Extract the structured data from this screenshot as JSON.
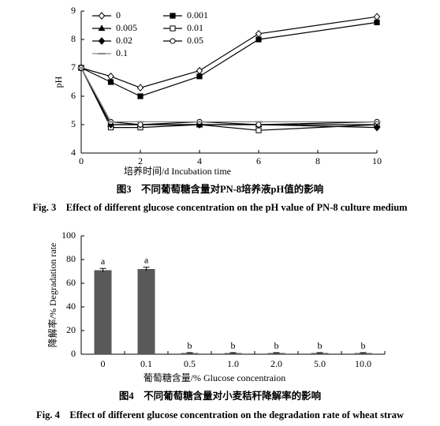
{
  "chart_data": [
    {
      "type": "line",
      "x_label": "培养时间/d Incubation time",
      "y_label": "pH",
      "caption_cn": "图3　不同葡萄糖含量对PN-8培养液pH值的影响",
      "caption_en": "Fig. 3　Effect of different glucose concentration on the pH value of PN-8 culture medium",
      "x": [
        0,
        1,
        2,
        4,
        6,
        10
      ],
      "xlim": [
        0,
        10
      ],
      "xticks": [
        0,
        2,
        4,
        6,
        8,
        10
      ],
      "ylim": [
        4,
        9
      ],
      "yticks": [
        4,
        5,
        6,
        7,
        8,
        9
      ],
      "legend": "upper left",
      "series": [
        {
          "name": "0",
          "color": "#000000",
          "marker": "diamond-open",
          "values": [
            7,
            6.7,
            6.3,
            6.9,
            8.2,
            8.8
          ]
        },
        {
          "name": "0.001",
          "color": "#000000",
          "marker": "square-filled",
          "values": [
            7,
            6.5,
            6.0,
            6.7,
            8.0,
            8.6
          ]
        },
        {
          "name": "0.005",
          "color": "#000000",
          "marker": "triangle-filled",
          "values": [
            7,
            5.0,
            5.0,
            5.0,
            5.0,
            5.0
          ]
        },
        {
          "name": "0.01",
          "color": "#000000",
          "marker": "square-open",
          "values": [
            7,
            4.9,
            4.9,
            5.0,
            4.8,
            5.0
          ]
        },
        {
          "name": "0.02",
          "color": "#000000",
          "marker": "diamond-filled",
          "values": [
            7,
            5.0,
            5.0,
            5.0,
            5.0,
            4.9
          ]
        },
        {
          "name": "0.05",
          "color": "#000000",
          "marker": "circle-open",
          "values": [
            7,
            5.1,
            5.0,
            5.1,
            5.0,
            5.1
          ]
        },
        {
          "name": "0.1",
          "color": "#888888",
          "marker": "dash",
          "values": [
            7,
            5.1,
            5.1,
            5.1,
            5.1,
            5.1
          ]
        }
      ]
    },
    {
      "type": "bar",
      "x_label": "葡萄糖含量/% Glucose concentraion",
      "y_label": "降解率/% Degradation rate",
      "caption_cn": "图4　不同葡萄糖含量对小麦秸秆降解率的影响",
      "caption_en": "Fig. 4　Effect of different glucose concentration on the degradation rate of wheat straw",
      "categories": [
        "0",
        "0.1",
        "0.5",
        "1.0",
        "2.0",
        "5.0",
        "10.0"
      ],
      "values": [
        71,
        72,
        1,
        1,
        1,
        1,
        1
      ],
      "errors": [
        1.5,
        1.5,
        0.3,
        0.3,
        0.3,
        0.3,
        0.3
      ],
      "significance_labels": [
        "a",
        "a",
        "b",
        "b",
        "b",
        "b",
        "b"
      ],
      "color": "#595959",
      "ylim": [
        0,
        100
      ],
      "yticks": [
        0,
        20,
        40,
        60,
        80,
        100
      ]
    }
  ]
}
